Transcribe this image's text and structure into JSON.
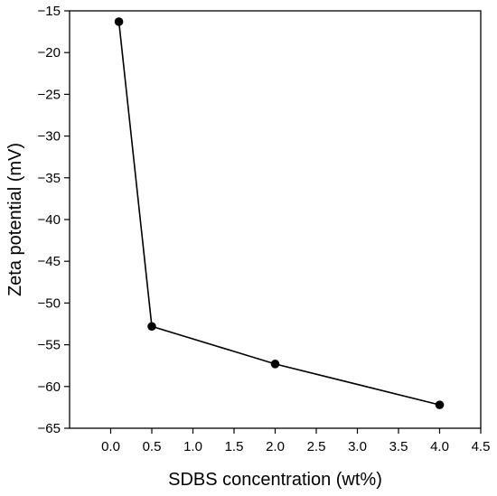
{
  "chart_data": {
    "type": "line",
    "title": "",
    "xlabel": "SDBS concentration (wt%)",
    "ylabel": "Zeta potential (mV)",
    "xlim": [
      -0.5,
      4.5
    ],
    "ylim": [
      -65,
      -15
    ],
    "xticks": [
      0.0,
      0.5,
      1.0,
      1.5,
      2.0,
      2.5,
      3.0,
      3.5,
      4.0,
      4.5
    ],
    "xtick_labels": [
      "0.0",
      "0.5",
      "1.0",
      "1.5",
      "2.0",
      "2.5",
      "3.0",
      "3.5",
      "4.0",
      "4.5"
    ],
    "yticks": [
      -15,
      -20,
      -25,
      -30,
      -35,
      -40,
      -45,
      -50,
      -55,
      -60,
      -65
    ],
    "ytick_labels": [
      "−15",
      "−20",
      "−25",
      "−30",
      "−35",
      "−40",
      "−45",
      "−50",
      "−55",
      "−60",
      "−65"
    ],
    "grid": false,
    "legend": "none",
    "series": [
      {
        "x": [
          0.1,
          0.5,
          2.0,
          4.0
        ],
        "y": [
          -16.3,
          -52.8,
          -57.3,
          -62.2
        ],
        "color": "#000000",
        "marker": "filled-circle"
      }
    ]
  }
}
